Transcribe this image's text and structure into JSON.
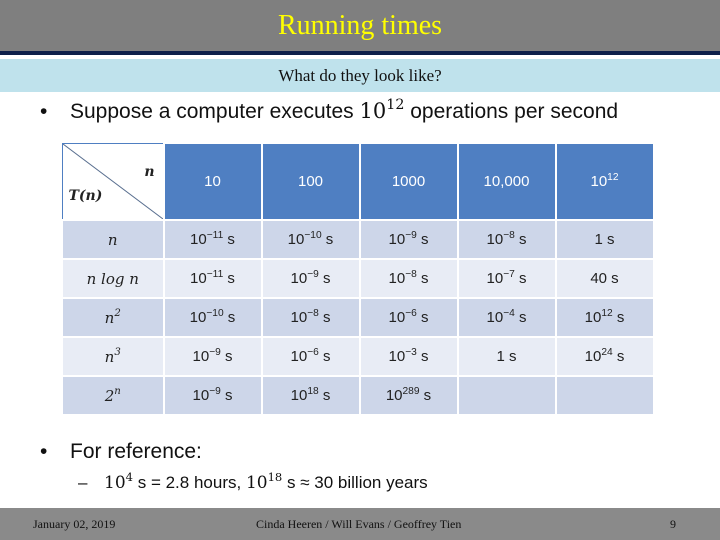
{
  "header": {
    "title": "Running times",
    "subtitle": "What do they look like?"
  },
  "bullet1": {
    "text": "Suppose a computer executes ",
    "base": "10",
    "exp": "12",
    "tail": " operations per second"
  },
  "table": {
    "corner_top": "n",
    "corner_bottom": "T(n)",
    "columns": [
      {
        "base": "10",
        "exp": ""
      },
      {
        "base": "100",
        "exp": ""
      },
      {
        "base": "1000",
        "exp": ""
      },
      {
        "base": "10,000",
        "exp": ""
      },
      {
        "base": "10",
        "exp": "12"
      }
    ],
    "rows": [
      {
        "label": "n",
        "label_exp": "",
        "cells": [
          {
            "base": "10",
            "exp": "−11",
            "unit": " s"
          },
          {
            "base": "10",
            "exp": "−10",
            "unit": " s"
          },
          {
            "base": "10",
            "exp": "−9",
            "unit": " s"
          },
          {
            "base": "10",
            "exp": "−8",
            "unit": " s"
          },
          {
            "base": "1 s",
            "exp": "",
            "unit": ""
          }
        ]
      },
      {
        "label": "n log n",
        "label_exp": "",
        "cells": [
          {
            "base": "10",
            "exp": "−11",
            "unit": " s"
          },
          {
            "base": "10",
            "exp": "−9",
            "unit": " s"
          },
          {
            "base": "10",
            "exp": "−8",
            "unit": " s"
          },
          {
            "base": "10",
            "exp": "−7",
            "unit": " s"
          },
          {
            "base": "40 s",
            "exp": "",
            "unit": ""
          }
        ]
      },
      {
        "label": "n",
        "label_exp": "2",
        "cells": [
          {
            "base": "10",
            "exp": "−10",
            "unit": " s"
          },
          {
            "base": "10",
            "exp": "−8",
            "unit": " s"
          },
          {
            "base": "10",
            "exp": "−6",
            "unit": " s"
          },
          {
            "base": "10",
            "exp": "−4",
            "unit": " s"
          },
          {
            "base": "10",
            "exp": "12",
            "unit": " s"
          }
        ]
      },
      {
        "label": "n",
        "label_exp": "3",
        "cells": [
          {
            "base": "10",
            "exp": "−9",
            "unit": " s"
          },
          {
            "base": "10",
            "exp": "−6",
            "unit": " s"
          },
          {
            "base": "10",
            "exp": "−3",
            "unit": " s"
          },
          {
            "base": "1 s",
            "exp": "",
            "unit": ""
          },
          {
            "base": "10",
            "exp": "24",
            "unit": " s"
          }
        ]
      },
      {
        "label": "2",
        "label_exp": "n",
        "cells": [
          {
            "base": "10",
            "exp": "−9",
            "unit": " s"
          },
          {
            "base": "10",
            "exp": "18",
            "unit": " s"
          },
          {
            "base": "10",
            "exp": "289",
            "unit": " s"
          },
          {
            "base": "",
            "exp": "",
            "unit": ""
          },
          {
            "base": "",
            "exp": "",
            "unit": ""
          }
        ]
      }
    ]
  },
  "bullet2": {
    "text": "For reference:"
  },
  "subbullet": {
    "base1": "10",
    "exp1": "4",
    "part1": " s = 2.8 hours, ",
    "base2": "10",
    "exp2": "18",
    "part2": " s ≈ 30 billion years"
  },
  "footer": {
    "date": "January 02, 2019",
    "authors": "Cinda Heeren / Will Evans / Geoffrey Tien",
    "page": "9"
  },
  "colors": {
    "title_bar": "#7f7f7f",
    "title_text": "#ffff00",
    "subtitle_bar": "#bfe2ec",
    "table_header": "#4f7fc2",
    "table_row_dark": "#cdd6e9",
    "table_row_light": "#e8ecf5",
    "footer_bar": "#8a8a8a"
  }
}
